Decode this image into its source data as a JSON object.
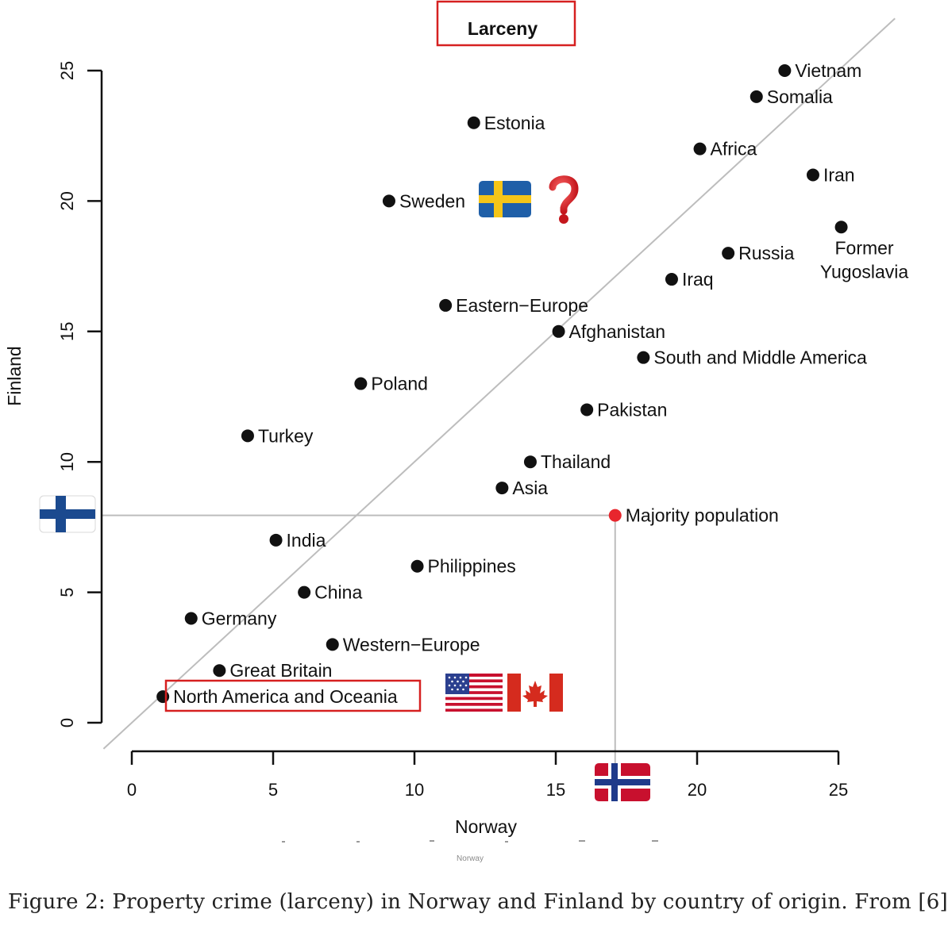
{
  "chart_data": {
    "type": "scatter",
    "title": "Larceny",
    "xlabel": "Norway",
    "ylabel": "Finland",
    "xlim": [
      0,
      25
    ],
    "ylim": [
      0,
      25
    ],
    "x_ticks": [
      "0",
      "5",
      "10",
      "15",
      "20",
      "25"
    ],
    "y_ticks": [
      "0",
      "5",
      "10",
      "15",
      "20",
      "25"
    ],
    "reference_line": "y = x",
    "grid": false,
    "points": [
      {
        "label": "Vietnam",
        "x": 23.1,
        "y": 25.0
      },
      {
        "label": "Somalia",
        "x": 22.1,
        "y": 24.0
      },
      {
        "label": "Estonia",
        "x": 12.1,
        "y": 23.0
      },
      {
        "label": "Africa",
        "x": 20.1,
        "y": 22.0
      },
      {
        "label": "Iran",
        "x": 24.1,
        "y": 21.0
      },
      {
        "label": "Sweden",
        "x": 9.1,
        "y": 20.0
      },
      {
        "label": "Former Yugoslavia",
        "x": 25.1,
        "y": 19.0
      },
      {
        "label": "Russia",
        "x": 21.1,
        "y": 18.0
      },
      {
        "label": "Iraq",
        "x": 19.1,
        "y": 17.0
      },
      {
        "label": "Eastern−Europe",
        "x": 11.1,
        "y": 16.0
      },
      {
        "label": "Afghanistan",
        "x": 15.1,
        "y": 15.0
      },
      {
        "label": "South and Middle America",
        "x": 18.1,
        "y": 14.0
      },
      {
        "label": "Poland",
        "x": 8.1,
        "y": 13.0
      },
      {
        "label": "Pakistan",
        "x": 16.1,
        "y": 12.0
      },
      {
        "label": "Turkey",
        "x": 4.1,
        "y": 11.0
      },
      {
        "label": "Thailand",
        "x": 14.1,
        "y": 10.0
      },
      {
        "label": "Asia",
        "x": 13.1,
        "y": 9.0
      },
      {
        "label": "Majority population",
        "x": 17.1,
        "y": 7.95,
        "highlight": true
      },
      {
        "label": "India",
        "x": 5.1,
        "y": 7.0
      },
      {
        "label": "Philippines",
        "x": 10.1,
        "y": 6.0
      },
      {
        "label": "China",
        "x": 6.1,
        "y": 5.0
      },
      {
        "label": "Germany",
        "x": 2.1,
        "y": 4.0
      },
      {
        "label": "Western−Europe",
        "x": 7.1,
        "y": 3.0
      },
      {
        "label": "Great Britain",
        "x": 3.1,
        "y": 2.0
      },
      {
        "label": "North America and Oceania",
        "x": 1.1,
        "y": 1.0
      }
    ],
    "colors": {
      "point": "#111111",
      "highlight_point": "#e8262d",
      "reference_line": "#bdbdbd",
      "box_outline": "#d62020"
    },
    "annotations": [
      {
        "type": "box",
        "target": "title"
      },
      {
        "type": "box",
        "target": "North America and Oceania"
      },
      {
        "type": "flag-icon",
        "name": "sweden-flag-icon",
        "near": "Sweden"
      },
      {
        "type": "question-icon",
        "name": "red-question-mark-icon",
        "near": "Sweden"
      },
      {
        "type": "flag-icon",
        "name": "finland-flag-icon",
        "near": "y-axis"
      },
      {
        "type": "flag-icon",
        "name": "norway-flag-icon",
        "near": "x-axis"
      },
      {
        "type": "flag-icon",
        "name": "usa-flag-icon",
        "near": "North America and Oceania"
      },
      {
        "type": "flag-icon",
        "name": "canada-flag-icon",
        "near": "North America and Oceania"
      }
    ]
  },
  "inset_label": "Norway",
  "caption": "Figure 2: Property crime (larceny) in Norway and Finland by country of origin. From [6]"
}
